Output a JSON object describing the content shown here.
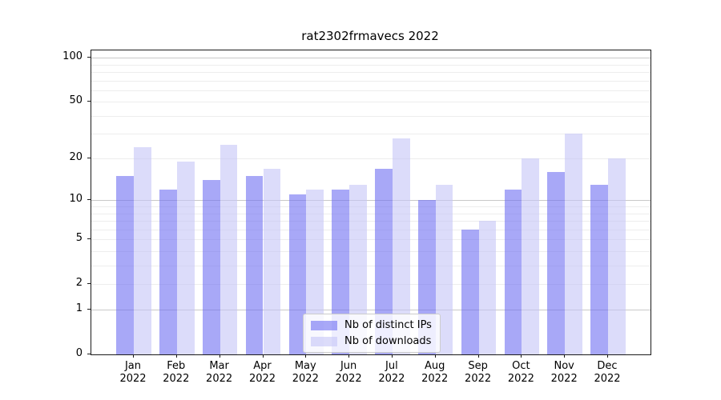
{
  "figure": {
    "title": "rat2302frmavecs 2022"
  },
  "chart_data": {
    "type": "bar",
    "title": "rat2302frmavecs 2022",
    "categories": [
      "Jan 2022",
      "Feb 2022",
      "Mar 2022",
      "Apr 2022",
      "May 2022",
      "Jun 2022",
      "Jul 2022",
      "Aug 2022",
      "Sep 2022",
      "Oct 2022",
      "Nov 2022",
      "Dec 2022"
    ],
    "series": [
      {
        "name": "Nb of distinct IPs",
        "color": "#6e6ef2",
        "values": [
          15,
          12,
          14,
          15,
          11,
          12,
          17,
          10,
          6,
          12,
          16,
          13
        ]
      },
      {
        "name": "Nb of downloads",
        "color": "#c5c5f7",
        "values": [
          24,
          19,
          25,
          17,
          12,
          13,
          28,
          13,
          7,
          20,
          30,
          20
        ]
      }
    ],
    "xlabel": "",
    "ylabel": "",
    "yscale": "log1p",
    "y_ticks": [
      0,
      1,
      2,
      5,
      10,
      20,
      50,
      100
    ],
    "y_minor_gridlines": [
      2,
      3,
      4,
      5,
      6,
      7,
      8,
      9,
      20,
      30,
      40,
      50,
      60,
      70,
      80,
      90
    ],
    "y_major_gridlines": [
      1,
      10,
      100
    ],
    "ylim": [
      0,
      112
    ],
    "grid": true,
    "legend_position": "lower center"
  }
}
